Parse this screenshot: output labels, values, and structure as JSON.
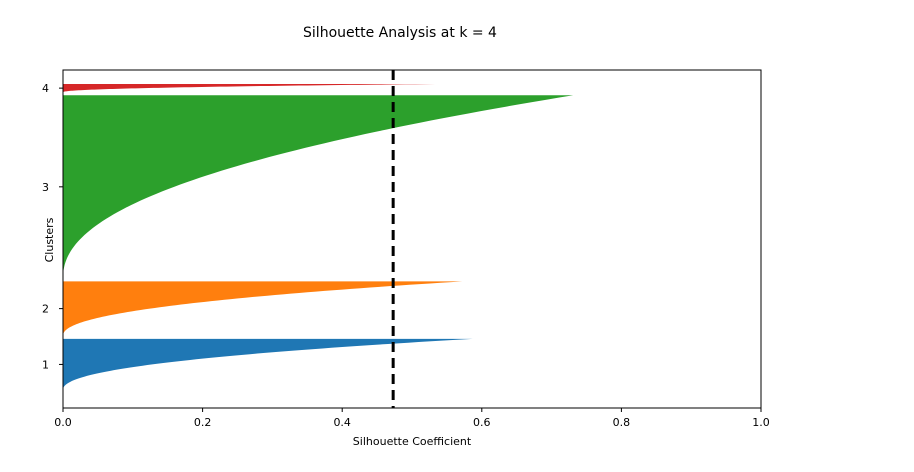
{
  "chart_data": {
    "type": "area",
    "title": "Silhouette Analysis at k = 4",
    "xlabel": "Silhouette Coefficient",
    "ylabel": "Clusters",
    "xlim": [
      0.0,
      1.0
    ],
    "x_ticks": [
      "0.0",
      "0.2",
      "0.4",
      "0.6",
      "0.8",
      "1.0"
    ],
    "grid": false,
    "legend": "none",
    "average_silhouette": 0.473,
    "series": [
      {
        "label": "1",
        "color": "#1f77b4",
        "min": 0.0,
        "max": 0.587,
        "share": 0.155
      },
      {
        "label": "2",
        "color": "#ff7f0e",
        "min": 0.0,
        "max": 0.572,
        "share": 0.165
      },
      {
        "label": "3",
        "color": "#2ca02c",
        "min": 0.0,
        "max": 0.731,
        "share": 0.555
      },
      {
        "label": "4",
        "color": "#d62728",
        "min": 0.0,
        "max": 0.534,
        "share": 0.025
      }
    ]
  }
}
